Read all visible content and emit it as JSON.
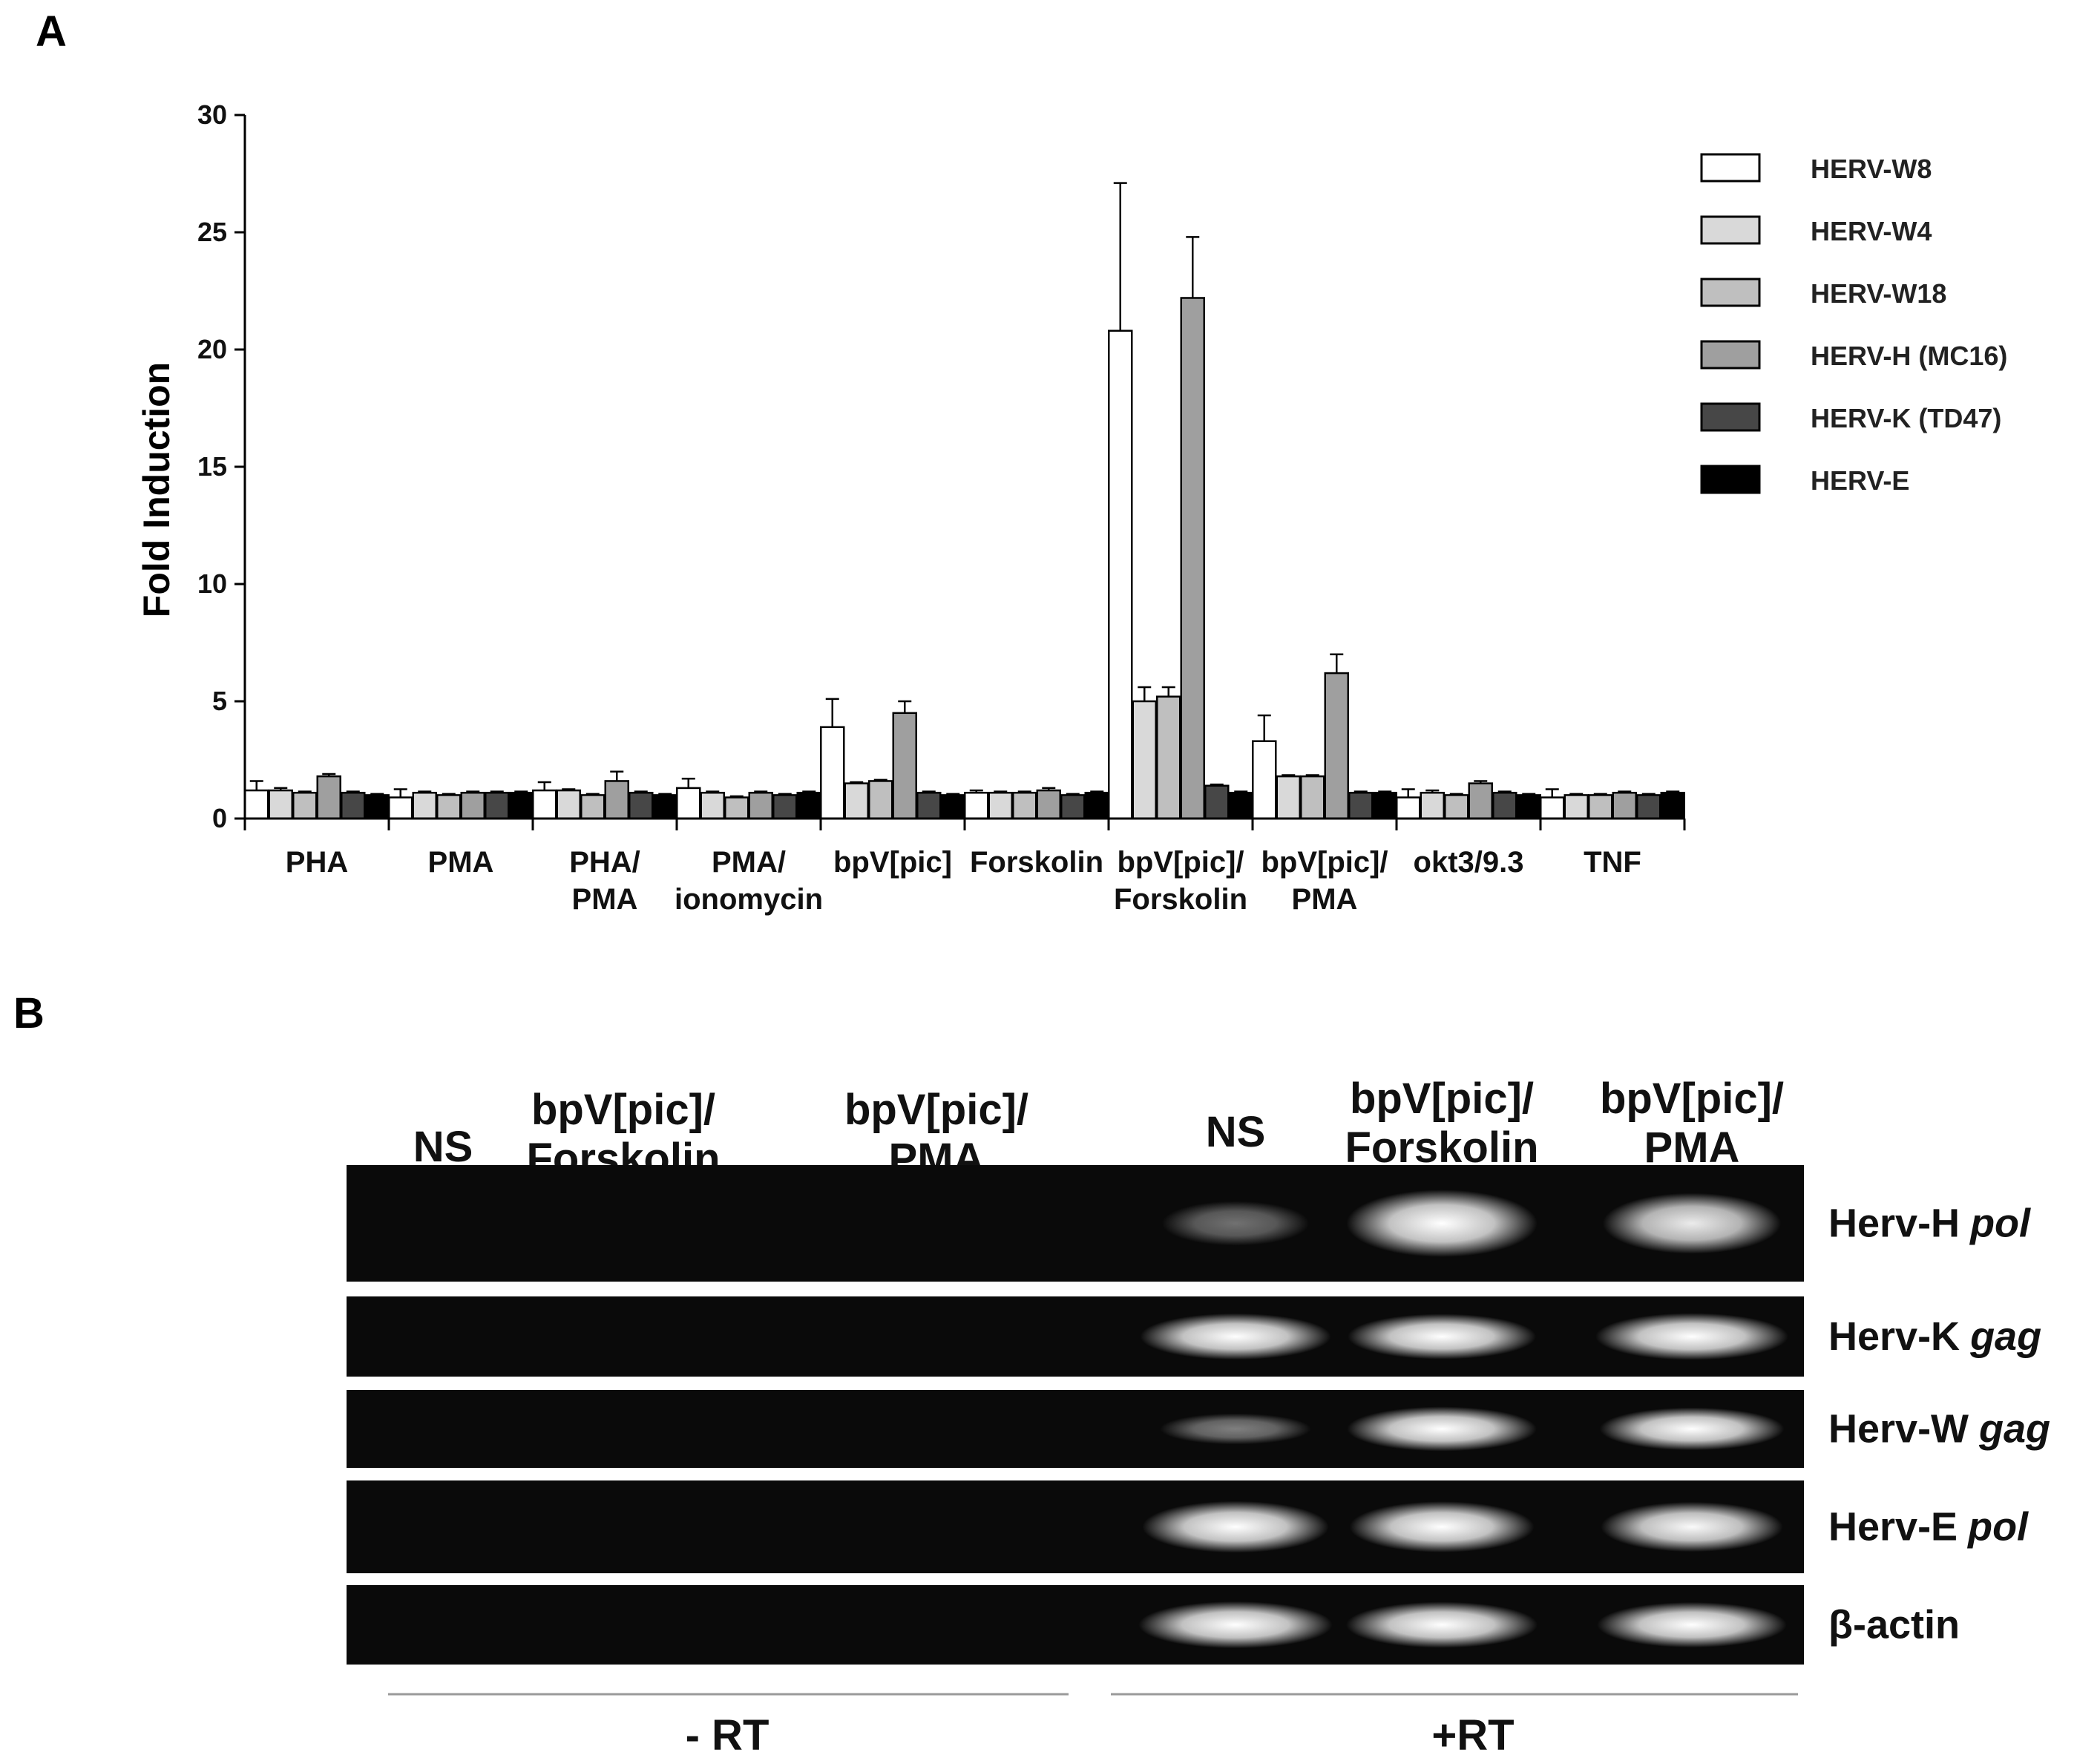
{
  "panel_a_label": "A",
  "panel_b_label": "B",
  "chart_data": {
    "type": "bar",
    "ylabel": "Fold Induction",
    "xlabel": "",
    "ylim": [
      0,
      30
    ],
    "yticks": [
      "0",
      "5",
      "10",
      "15",
      "20",
      "25",
      "30"
    ],
    "legend_position": "top-right",
    "categories": [
      [
        "PHA"
      ],
      [
        "PMA"
      ],
      [
        "PHA/",
        "PMA"
      ],
      [
        "PMA/",
        "ionomycin"
      ],
      [
        "bpV[pic]"
      ],
      [
        "Forskolin"
      ],
      [
        "bpV[pic]/",
        "Forskolin"
      ],
      [
        "bpV[pic]/",
        "PMA"
      ],
      [
        "okt3/9.3"
      ],
      [
        "TNF"
      ]
    ],
    "series": [
      {
        "name": "HERV-W8",
        "color": "#ffffff",
        "values": [
          1.2,
          0.9,
          1.2,
          1.3,
          3.9,
          1.1,
          20.8,
          3.3,
          0.9,
          0.9
        ],
        "errors": [
          0.4,
          0.35,
          0.35,
          0.4,
          1.2,
          0.1,
          6.3,
          1.1,
          0.35,
          0.35
        ]
      },
      {
        "name": "HERV-W4",
        "color": "#d9d9d9",
        "values": [
          1.2,
          1.1,
          1.2,
          1.1,
          1.5,
          1.1,
          5.0,
          1.8,
          1.1,
          1.0
        ],
        "errors": [
          0.1,
          0.05,
          0.05,
          0.05,
          0.05,
          0.05,
          0.6,
          0.05,
          0.1,
          0.05
        ]
      },
      {
        "name": "HERV-W18",
        "color": "#bfbfbf",
        "values": [
          1.1,
          1.0,
          1.0,
          0.9,
          1.6,
          1.1,
          5.2,
          1.8,
          1.0,
          1.0
        ],
        "errors": [
          0.05,
          0.05,
          0.05,
          0.05,
          0.05,
          0.05,
          0.4,
          0.05,
          0.05,
          0.05
        ]
      },
      {
        "name": "HERV-H (MC16)",
        "color": "#9f9f9f",
        "values": [
          1.8,
          1.1,
          1.6,
          1.1,
          4.5,
          1.2,
          22.2,
          6.2,
          1.5,
          1.1
        ],
        "errors": [
          0.1,
          0.05,
          0.4,
          0.05,
          0.5,
          0.1,
          2.6,
          0.8,
          0.1,
          0.05
        ]
      },
      {
        "name": "HERV-K (TD47)",
        "color": "#474747",
        "values": [
          1.1,
          1.1,
          1.1,
          1.0,
          1.1,
          1.0,
          1.4,
          1.1,
          1.1,
          1.0
        ],
        "errors": [
          0.05,
          0.05,
          0.05,
          0.05,
          0.05,
          0.05,
          0.05,
          0.05,
          0.05,
          0.05
        ]
      },
      {
        "name": "HERV-E",
        "color": "#000000",
        "values": [
          1.0,
          1.1,
          1.0,
          1.1,
          1.0,
          1.1,
          1.1,
          1.1,
          1.0,
          1.1
        ],
        "errors": [
          0.05,
          0.05,
          0.05,
          0.05,
          0.05,
          0.05,
          0.05,
          0.05,
          0.05,
          0.05
        ]
      }
    ]
  },
  "gel": {
    "lanes": [
      [
        "NS"
      ],
      [
        "bpV[pic]/",
        "Forskolin"
      ],
      [
        "bpV[pic]/",
        "PMA"
      ],
      [
        "NS"
      ],
      [
        "bpV[pic]/",
        "Forskolin"
      ],
      [
        "bpV[pic]/",
        "PMA"
      ]
    ],
    "rows": [
      {
        "name": "Herv-H",
        "suffix": "pol",
        "intensity": [
          0,
          0,
          0,
          0.22,
          0.92,
          0.72
        ]
      },
      {
        "name": "Herv-K",
        "suffix": "gag",
        "intensity": [
          0,
          0,
          0,
          0.92,
          0.88,
          0.95
        ]
      },
      {
        "name": "Herv-W",
        "suffix": "gag",
        "intensity": [
          0,
          0,
          0,
          0.28,
          0.9,
          0.82
        ]
      },
      {
        "name": "Herv-E",
        "suffix": "pol",
        "intensity": [
          0,
          0,
          0,
          0.85,
          0.82,
          0.78
        ]
      },
      {
        "name": "β-actin",
        "suffix": "",
        "intensity": [
          0,
          0,
          0,
          0.97,
          0.93,
          0.9
        ]
      }
    ],
    "groups": [
      "- RT",
      "+RT"
    ]
  }
}
